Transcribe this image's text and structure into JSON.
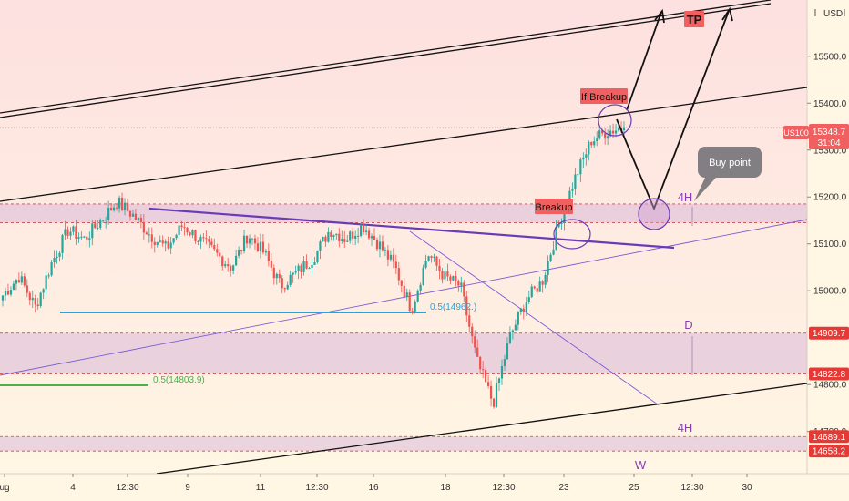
{
  "currency": "USD",
  "symbol": "US100",
  "price_label": "15348.7",
  "countdown": "31:04",
  "colors": {
    "up": "#26a69a",
    "down": "#ef5350",
    "bg_top": "#fde0e0",
    "bg_bottom": "#fff6e3",
    "zone": "#d8b8d8",
    "resistance": "#6a3bb5",
    "fib_blue": "#29a3d6",
    "fib_green": "#4caf50",
    "label_red": "#f06060"
  },
  "chart_data": {
    "type": "candlestick",
    "y_ticks": [
      "15500.0",
      "15400.0",
      "15300.0",
      "15200.0",
      "15100.0",
      "15000.0",
      "14800.0",
      "14700.0"
    ],
    "x_ticks": [
      "ug",
      "4",
      "12:30",
      "9",
      "11",
      "12:30",
      "16",
      "18",
      "12:30",
      "23",
      "25",
      "12:30",
      "30"
    ],
    "ylim": [
      14610,
      15620
    ],
    "marked_levels": [
      {
        "value": 14909.7,
        "text": "14909.7"
      },
      {
        "value": 14822.8,
        "text": "14822.8"
      },
      {
        "value": 14689.1,
        "text": "14689.1"
      },
      {
        "value": 14658.2,
        "text": "14658.2"
      }
    ],
    "zones": [
      {
        "from": 15145,
        "to": 15185,
        "label": "4H"
      },
      {
        "from": 14822.8,
        "to": 14909.7,
        "label": "D"
      },
      {
        "from": 14658.2,
        "to": 14689.1,
        "label": "W"
      }
    ],
    "fib_levels": [
      {
        "text": "0.5(14803.9)",
        "value": 14803.9
      },
      {
        "text": "0.5(14962.)",
        "value": 14962
      }
    ],
    "annotations": [
      "TP",
      "If Breakup",
      "Breakup",
      "Buy point",
      "4H"
    ],
    "close_path": [
      14990,
      15030,
      14965,
      15060,
      15130,
      15110,
      15150,
      15190,
      15160,
      15120,
      15090,
      15140,
      15110,
      15080,
      15050,
      15120,
      15080,
      15010,
      15040,
      15070,
      15130,
      15110,
      15140,
      15100,
      15050,
      14960,
      15080,
      15030,
      15010,
      14850,
      14760,
      14900,
      14980,
      15020,
      15140,
      15240,
      15320,
      15340,
      15348.7
    ],
    "candle_count": 230
  }
}
